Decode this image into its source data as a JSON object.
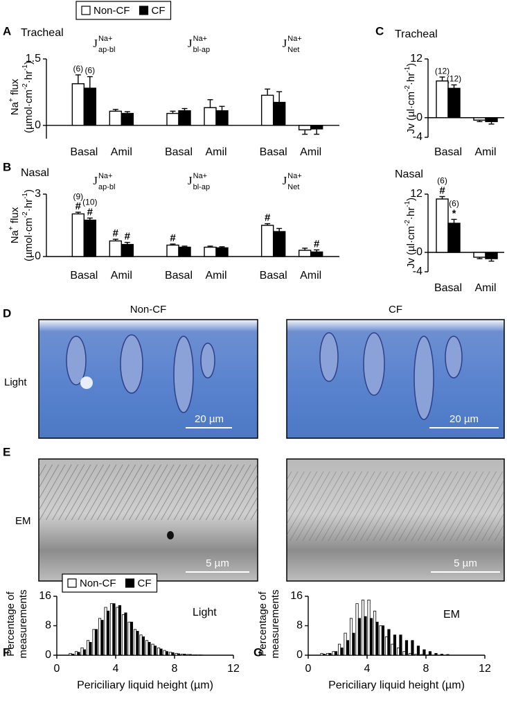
{
  "chart_data": [
    {
      "type": "bar",
      "panel": "A",
      "title": "Tracheal",
      "ylabel": [
        [
          {
            "text": "Na"
          },
          {
            "text": "+",
            "sup": true
          },
          {
            "text": " flux"
          }
        ],
        [
          {
            "text": "(µmol·cm"
          },
          {
            "text": "-2",
            "sup": true
          },
          {
            "text": "·hr"
          },
          {
            "text": "-1",
            "sup": true
          },
          {
            "text": ")"
          }
        ]
      ],
      "groups": [
        [
          {
            "text": "J"
          },
          {
            "text": "Na+",
            "sup": true
          },
          {
            "text": "ap-bl",
            "sub": true
          }
        ],
        [
          {
            "text": "J"
          },
          {
            "text": "Na+",
            "sup": true
          },
          {
            "text": "bl-ap",
            "sub": true
          }
        ],
        [
          {
            "text": "J"
          },
          {
            "text": "Na+",
            "sup": true
          },
          {
            "text": "Net",
            "sub": true
          }
        ]
      ],
      "categories": [
        "Basal",
        "Amil",
        "Basal",
        "Amil",
        "Basal",
        "Amil"
      ],
      "ylim": [
        -0.3,
        1.5
      ],
      "yticks": [
        0,
        1.5
      ],
      "legend": "top",
      "series": [
        {
          "name": "Non-CF",
          "color": "#ffffff",
          "values": [
            0.94,
            0.32,
            0.27,
            0.4,
            0.68,
            -0.1
          ],
          "errors": [
            0.2,
            0.04,
            0.05,
            0.18,
            0.14,
            0.1
          ],
          "annotations": [
            [
              "(6)"
            ],
            null,
            null,
            null,
            null,
            null
          ]
        },
        {
          "name": "CF",
          "color": "#000000",
          "values": [
            0.84,
            0.27,
            0.33,
            0.33,
            0.52,
            -0.08
          ],
          "errors": [
            0.26,
            0.04,
            0.05,
            0.1,
            0.24,
            0.12
          ],
          "annotations": [
            [
              "(6)"
            ],
            null,
            null,
            null,
            null,
            null
          ]
        }
      ]
    },
    {
      "type": "bar",
      "panel": "B",
      "title": "Nasal",
      "ylabel": [
        [
          {
            "text": "Na"
          },
          {
            "text": "+",
            "sup": true
          },
          {
            "text": " flux"
          }
        ],
        [
          {
            "text": "(µmol·cm"
          },
          {
            "text": "-2",
            "sup": true
          },
          {
            "text": "·hr"
          },
          {
            "text": "-1",
            "sup": true
          },
          {
            "text": ")"
          }
        ]
      ],
      "groups": [
        [
          {
            "text": "J"
          },
          {
            "text": "Na+",
            "sup": true
          },
          {
            "text": "ap-bl",
            "sub": true
          }
        ],
        [
          {
            "text": "J"
          },
          {
            "text": "Na+",
            "sup": true
          },
          {
            "text": "bl-ap",
            "sub": true
          }
        ],
        [
          {
            "text": "J"
          },
          {
            "text": "Na+",
            "sup": true
          },
          {
            "text": "Net",
            "sub": true
          }
        ]
      ],
      "categories": [
        "Basal",
        "Amil",
        "Basal",
        "Amil",
        "Basal",
        "Amil"
      ],
      "ylim": [
        0,
        3
      ],
      "yticks": [
        0,
        3
      ],
      "series": [
        {
          "color": "#ffffff",
          "values": [
            2.05,
            0.75,
            0.55,
            0.45,
            1.5,
            0.3
          ],
          "errors": [
            0.08,
            0.08,
            0.05,
            0.05,
            0.08,
            0.1
          ],
          "annotations": [
            [
              "#",
              "(9)"
            ],
            [
              "#"
            ],
            [
              "#"
            ],
            null,
            [
              "#"
            ],
            null
          ]
        },
        {
          "color": "#000000",
          "values": [
            1.75,
            0.58,
            0.45,
            0.42,
            1.2,
            0.22
          ],
          "errors": [
            0.1,
            0.1,
            0.05,
            0.05,
            0.15,
            0.1
          ],
          "annotations": [
            [
              "#",
              "(10)"
            ],
            [
              "#"
            ],
            null,
            null,
            null,
            [
              "#"
            ]
          ]
        }
      ]
    },
    {
      "type": "bar",
      "panel": "C",
      "title": "Tracheal",
      "ylabel": [
        [
          {
            "text": "Jv (µl·cm"
          },
          {
            "text": "-2",
            "sup": true
          },
          {
            "text": "·hr"
          },
          {
            "text": "-1",
            "sup": true
          },
          {
            "text": ")"
          }
        ]
      ],
      "categories": [
        "Basal",
        "Amil"
      ],
      "ylim": [
        -4,
        12
      ],
      "yticks": [
        -4,
        0,
        12
      ],
      "series": [
        {
          "color": "#ffffff",
          "values": [
            7.5,
            -0.5
          ],
          "errors": [
            0.8,
            0.3
          ],
          "annotations": [
            [
              "(12)"
            ],
            null
          ]
        },
        {
          "color": "#000000",
          "values": [
            6,
            -0.8
          ],
          "errors": [
            0.7,
            0.5
          ],
          "annotations": [
            [
              "(12)"
            ],
            null
          ]
        }
      ]
    },
    {
      "type": "bar",
      "title": "Nasal",
      "ylabel": [
        [
          {
            "text": "Jv (µl·cm"
          },
          {
            "text": "-2",
            "sup": true
          },
          {
            "text": "·hr"
          },
          {
            "text": "-1",
            "sup": true
          },
          {
            "text": ")"
          }
        ]
      ],
      "categories": [
        "Basal",
        "Amil"
      ],
      "ylim": [
        -4,
        12
      ],
      "yticks": [
        -4,
        0,
        12
      ],
      "series": [
        {
          "color": "#ffffff",
          "values": [
            11,
            -1
          ],
          "errors": [
            0.5,
            0.3
          ],
          "annotations": [
            [
              "#",
              "(6)"
            ],
            null
          ]
        },
        {
          "color": "#000000",
          "values": [
            6,
            -1.3
          ],
          "errors": [
            0.8,
            0.5
          ],
          "annotations": [
            [
              "*",
              "(6)"
            ],
            null
          ]
        }
      ]
    },
    {
      "type": "histogram",
      "panel": "F",
      "annotation": "Light",
      "xlabel": "Periciliary liquid height (µm)",
      "ylabel": [
        [
          {
            "text": "Percentage of"
          }
        ],
        [
          {
            "text": "measurements"
          }
        ]
      ],
      "bins": [
        0.8,
        1.2,
        1.6,
        2.0,
        2.4,
        2.8,
        3.2,
        3.6,
        4.0,
        4.4,
        4.8,
        5.2,
        5.6,
        6.0,
        6.4,
        6.8,
        7.2,
        7.6,
        8.0,
        8.4,
        8.8,
        9.2,
        9.6,
        10.0
      ],
      "xlim": [
        0,
        12
      ],
      "xticks": [
        0,
        4,
        8,
        12
      ],
      "ylim": [
        0,
        16
      ],
      "yticks": [
        0,
        8,
        16
      ],
      "legend": "top",
      "series": [
        {
          "name": "Non-CF",
          "color": "#ffffff",
          "values": [
            0.5,
            1,
            2,
            4,
            7,
            10,
            13,
            14,
            13,
            11,
            9,
            7,
            5.5,
            4,
            3,
            2,
            1.3,
            0.8,
            0.5,
            0.3,
            0.2,
            0.1,
            0.1
          ]
        },
        {
          "name": "CF",
          "color": "#000000",
          "values": [
            0.3,
            0.8,
            1.5,
            3.5,
            7,
            9.5,
            12,
            14,
            13.5,
            11.5,
            9,
            6.5,
            5,
            3.5,
            2.5,
            1.7,
            1,
            0.7,
            0.4,
            0.3,
            0.2,
            0.1,
            0.05
          ]
        }
      ]
    },
    {
      "type": "histogram",
      "panel": "G",
      "annotation": "EM",
      "xlabel": "Periciliary liquid height (µm)",
      "ylabel": [
        [
          {
            "text": "Percentage of"
          }
        ],
        [
          {
            "text": "measurements"
          }
        ]
      ],
      "bins": [
        0.8,
        1.2,
        1.6,
        2.0,
        2.4,
        2.8,
        3.2,
        3.6,
        4.0,
        4.4,
        4.8,
        5.2,
        5.6,
        6.0,
        6.4,
        6.8,
        7.2,
        7.6,
        8.0,
        8.4,
        8.8,
        9.2,
        9.6,
        10.0
      ],
      "xlim": [
        0,
        12
      ],
      "xticks": [
        0,
        4,
        8,
        12
      ],
      "ylim": [
        0,
        16
      ],
      "yticks": [
        0,
        8,
        16
      ],
      "series": [
        {
          "color": "#ffffff",
          "values": [
            0.5,
            0.5,
            1,
            3,
            6,
            10,
            14,
            15,
            15,
            12,
            8,
            5,
            3,
            2,
            1,
            0.5,
            0.3,
            0.2,
            0.1,
            0,
            0,
            0,
            0
          ]
        },
        {
          "color": "#000000",
          "values": [
            0.3,
            0.5,
            1,
            2,
            4,
            6,
            10,
            10.5,
            10,
            9,
            8,
            7,
            5.5,
            5.5,
            4,
            4,
            2.5,
            1.5,
            1,
            0.5,
            0.3,
            0.2,
            0
          ]
        }
      ]
    }
  ],
  "images": {
    "columns": [
      "Non-CF",
      "CF"
    ],
    "rows": [
      {
        "panel": "D",
        "label": "Light",
        "scale": [
          "20 µm",
          "20 µm"
        ]
      },
      {
        "panel": "E",
        "label": "EM",
        "scale": [
          "5 µm",
          "5 µm"
        ]
      }
    ]
  }
}
